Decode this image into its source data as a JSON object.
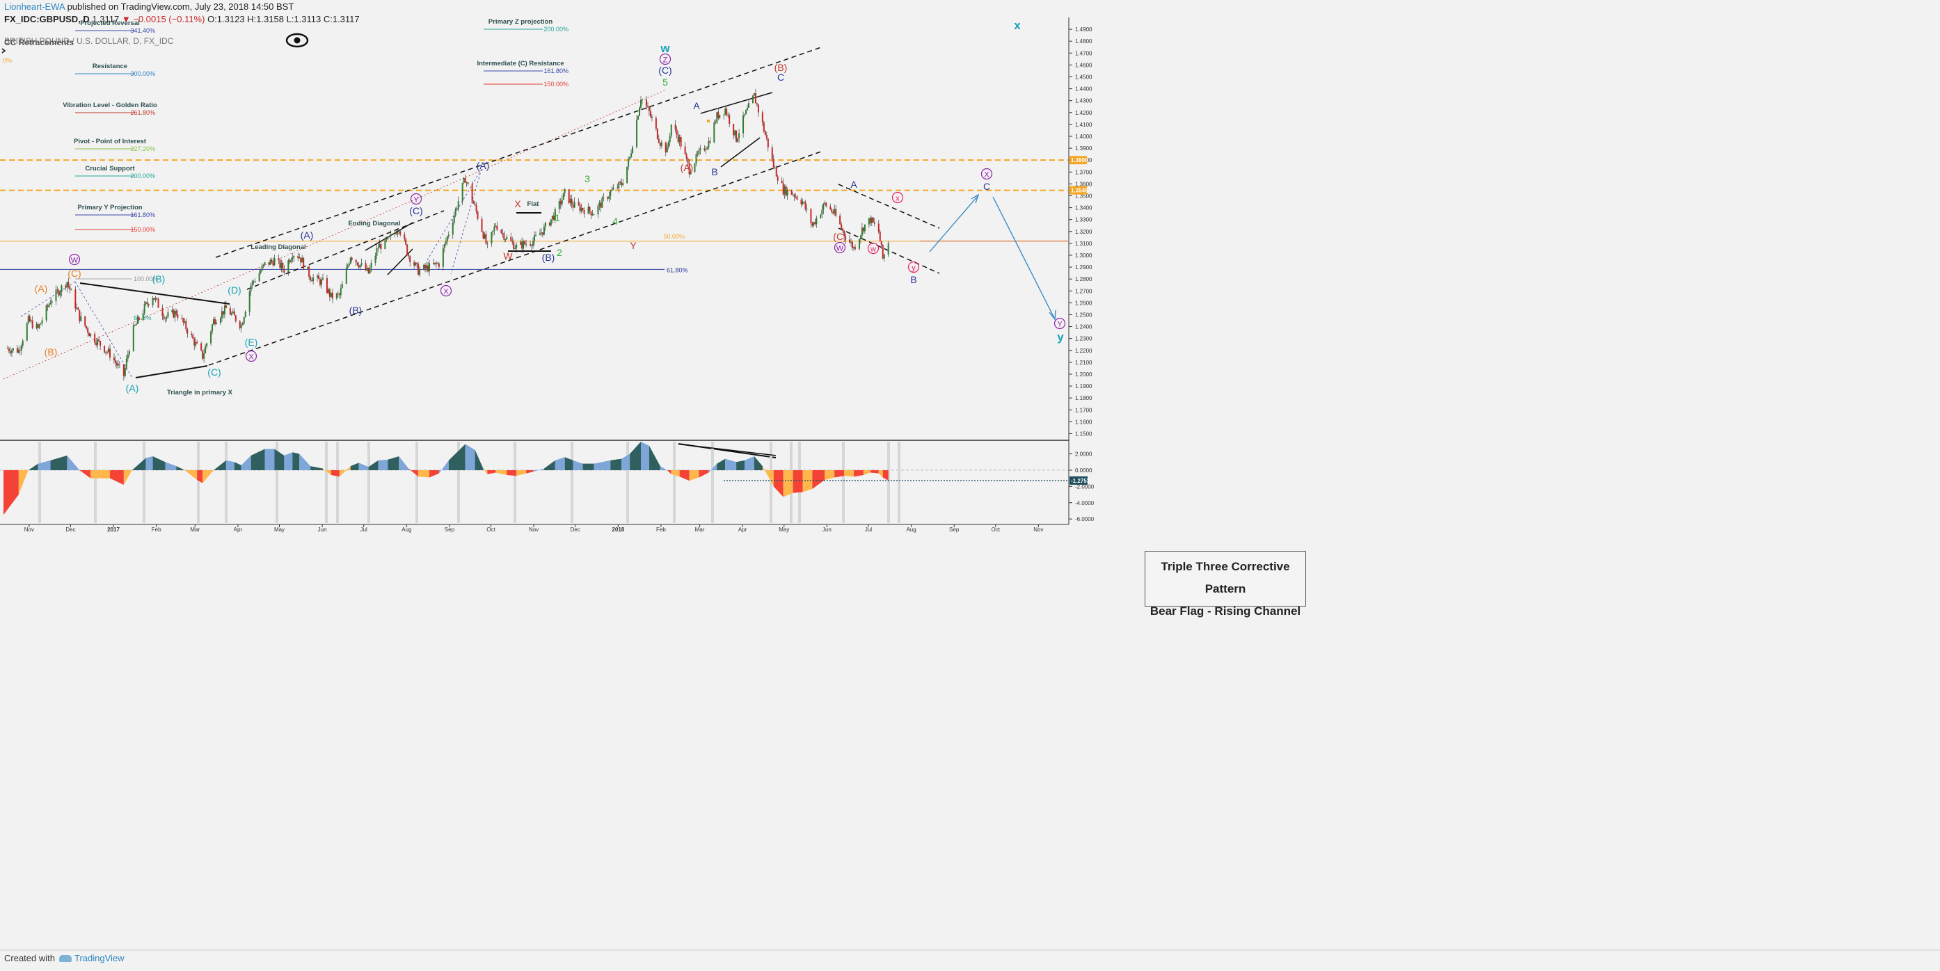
{
  "header": {
    "author": "Lionheart-EWA",
    "published": "published on TradingView.com, July 23, 2018 14:50 BST",
    "symbol": "FX_IDC:GBPUSD, D",
    "last": "1.3117",
    "change": "▼ −0.0015 (−0.11%)",
    "open": "O:1.3123",
    "high": "H:1.3158",
    "low": "L:1.3113",
    "close": "C:1.3117",
    "legend_main": "BRITISH POUND / U.S. DOLLAR, D, FX_IDC",
    "legend_overlay": "CC Retracements"
  },
  "footer": {
    "created_with": "Created with",
    "brand": "TradingView"
  },
  "note": {
    "line1": "Triple Three Corrective Pattern",
    "line2": "Bear Flag - Rising Channel"
  },
  "colors": {
    "up": "#2e7d32",
    "down": "#c62828",
    "orange": "#f5a623",
    "blue": "#2e86c1",
    "purple": "#8e24aa",
    "teal": "#17a2b8",
    "green": "#2eae2e",
    "red": "#c0392b",
    "navy": "#283593",
    "osc_pos_dark": "#2f5f5f",
    "osc_pos_light": "#7ea6d9",
    "osc_neg_red": "#f44336",
    "osc_neg_orange": "#ffb74d"
  },
  "chart_data": {
    "type": "candlestick",
    "symbol": "GBPUSD",
    "timeframe": "D",
    "x_ticks": [
      "Nov",
      "Dec",
      "2017",
      "Feb",
      "Mar",
      "Apr",
      "May",
      "Jun",
      "Jul",
      "Aug",
      "Sep",
      "Oct",
      "Nov",
      "Dec",
      "2018",
      "Feb",
      "Mar",
      "Apr",
      "May",
      "Jun",
      "Jul",
      "Aug",
      "Sep",
      "Oct",
      "Nov"
    ],
    "x_range": [
      "2016-10-21",
      "2018-11-30"
    ],
    "price_range": [
      1.145,
      1.5
    ],
    "price_ticks": [
      "1.4900",
      "1.4800",
      "1.4700",
      "1.4600",
      "1.4500",
      "1.4400",
      "1.4300",
      "1.4200",
      "1.4100",
      "1.4000",
      "1.3900",
      "1.3800",
      "1.3700",
      "1.3600",
      "1.3500",
      "1.3400",
      "1.3300",
      "1.3200",
      "1.3100",
      "1.3000",
      "1.2900",
      "1.2800",
      "1.2700",
      "1.2600",
      "1.2500",
      "1.2400",
      "1.2300",
      "1.2200",
      "1.2100",
      "1.2000",
      "1.1900",
      "1.1800",
      "1.1700",
      "1.1600",
      "1.1500"
    ],
    "price_path": [
      [
        "2016-10-21",
        1.222
      ],
      [
        "2016-11-01",
        1.22
      ],
      [
        "2016-11-08",
        1.245
      ],
      [
        "2016-11-15",
        1.238
      ],
      [
        "2016-11-24",
        1.262
      ],
      [
        "2016-12-06",
        1.278
      ],
      [
        "2016-12-15",
        1.248
      ],
      [
        "2016-12-23",
        1.233
      ],
      [
        "2017-01-06",
        1.217
      ],
      [
        "2017-01-16",
        1.199
      ],
      [
        "2017-01-22",
        1.235
      ],
      [
        "2017-02-01",
        1.258
      ],
      [
        "2017-02-06",
        1.266
      ],
      [
        "2017-02-15",
        1.248
      ],
      [
        "2017-02-23",
        1.252
      ],
      [
        "2017-03-01",
        1.241
      ],
      [
        "2017-03-10",
        1.223
      ],
      [
        "2017-03-14",
        1.215
      ],
      [
        "2017-03-22",
        1.245
      ],
      [
        "2017-03-31",
        1.255
      ],
      [
        "2017-04-06",
        1.248
      ],
      [
        "2017-04-11",
        1.241
      ],
      [
        "2017-04-18",
        1.275
      ],
      [
        "2017-04-28",
        1.292
      ],
      [
        "2017-05-05",
        1.296
      ],
      [
        "2017-05-12",
        1.288
      ],
      [
        "2017-05-18",
        1.302
      ],
      [
        "2017-05-23",
        1.299
      ],
      [
        "2017-05-31",
        1.282
      ],
      [
        "2017-06-09",
        1.277
      ],
      [
        "2017-06-15",
        1.265
      ],
      [
        "2017-06-21",
        1.266
      ],
      [
        "2017-06-29",
        1.3
      ],
      [
        "2017-07-05",
        1.293
      ],
      [
        "2017-07-12",
        1.285
      ],
      [
        "2017-07-19",
        1.307
      ],
      [
        "2017-07-26",
        1.312
      ],
      [
        "2017-08-03",
        1.324
      ],
      [
        "2017-08-10",
        1.3
      ],
      [
        "2017-08-17",
        1.287
      ],
      [
        "2017-08-25",
        1.29
      ],
      [
        "2017-09-01",
        1.293
      ],
      [
        "2017-09-08",
        1.319
      ],
      [
        "2017-09-20",
        1.365
      ],
      [
        "2017-09-27",
        1.34
      ],
      [
        "2017-10-03",
        1.318
      ],
      [
        "2017-10-06",
        1.306
      ],
      [
        "2017-10-12",
        1.326
      ],
      [
        "2017-10-20",
        1.314
      ],
      [
        "2017-10-27",
        1.307
      ],
      [
        "2017-11-03",
        1.31
      ],
      [
        "2017-11-08",
        1.312
      ],
      [
        "2017-11-16",
        1.322
      ],
      [
        "2017-11-24",
        1.335
      ],
      [
        "2017-12-01",
        1.352
      ],
      [
        "2017-12-07",
        1.342
      ],
      [
        "2017-12-14",
        1.339
      ],
      [
        "2017-12-22",
        1.336
      ],
      [
        "2018-01-03",
        1.353
      ],
      [
        "2018-01-11",
        1.36
      ],
      [
        "2018-01-17",
        1.382
      ],
      [
        "2018-01-25",
        1.433
      ],
      [
        "2018-01-31",
        1.42
      ],
      [
        "2018-02-08",
        1.395
      ],
      [
        "2018-02-13",
        1.388
      ],
      [
        "2018-02-16",
        1.41
      ],
      [
        "2018-02-22",
        1.397
      ],
      [
        "2018-03-01",
        1.372
      ],
      [
        "2018-03-08",
        1.385
      ],
      [
        "2018-03-15",
        1.395
      ],
      [
        "2018-03-21",
        1.417
      ],
      [
        "2018-03-27",
        1.423
      ],
      [
        "2018-04-04",
        1.398
      ],
      [
        "2018-04-10",
        1.417
      ],
      [
        "2018-04-17",
        1.434
      ],
      [
        "2018-04-23",
        1.41
      ],
      [
        "2018-05-01",
        1.375
      ],
      [
        "2018-05-08",
        1.355
      ],
      [
        "2018-05-15",
        1.352
      ],
      [
        "2018-05-22",
        1.345
      ],
      [
        "2018-05-29",
        1.325
      ],
      [
        "2018-06-07",
        1.343
      ],
      [
        "2018-06-14",
        1.335
      ],
      [
        "2018-06-21",
        1.318
      ],
      [
        "2018-06-28",
        1.306
      ],
      [
        "2018-07-05",
        1.324
      ],
      [
        "2018-07-10",
        1.33
      ],
      [
        "2018-07-16",
        1.32
      ],
      [
        "2018-07-19",
        1.297
      ],
      [
        "2018-07-23",
        1.312
      ]
    ],
    "horizontal_levels": [
      {
        "price": 1.38,
        "label": "1.3800",
        "style": "dashed",
        "color": "#f5a623"
      },
      {
        "price": 1.3546,
        "label": "1.3546",
        "style": "dashed",
        "color": "#f5a623"
      },
      {
        "price": 1.3118,
        "label": "",
        "style": "solid",
        "color": "#f5a623"
      },
      {
        "price": 1.2881,
        "label": "61.80%",
        "style": "solid",
        "color": "#2e3fa0"
      }
    ],
    "fib_levels_left": [
      {
        "name": "Projected Reversal",
        "pct": "341.40%",
        "color": "#3949ab"
      },
      {
        "name": "Resistance",
        "pct": "300.00%",
        "color": "#2e86c1"
      },
      {
        "name": "Vibration Level - Golden Ratio",
        "pct": "261.80%",
        "color": "#c0392b"
      },
      {
        "name": "Pivot - Point of Interest",
        "pct": "227.20%",
        "color": "#8bc34a"
      },
      {
        "name": "Crucial Support",
        "pct": "200.00%",
        "color": "#26a69a"
      },
      {
        "name": "Primary Y Projection",
        "pct": "161.80%",
        "color": "#3949ab"
      },
      {
        "name": "",
        "pct": "150.00%",
        "color": "#e53935"
      }
    ],
    "fib_levels_top": [
      {
        "name": "Primary Z projection",
        "pct": "200.00%",
        "color": "#26a69a"
      },
      {
        "name": "Intermediate (C) Resistance",
        "pct": "161.80%",
        "color": "#3949ab"
      },
      {
        "name": "",
        "pct": "150.00%",
        "color": "#e53935"
      }
    ],
    "misc_labels": [
      {
        "text": "50.00%",
        "color": "#f5a623"
      },
      {
        "text": "100.00%",
        "color": "#999999"
      },
      {
        "text": "0%",
        "color": "#f5a623"
      },
      {
        "text": "61.8%",
        "color": "#26a69a"
      }
    ],
    "annotations": [
      {
        "text": "Leading Diagonal",
        "color": "#2f4f4f"
      },
      {
        "text": "Ending Diagonal",
        "color": "#2f4f4f"
      },
      {
        "text": "Flat",
        "color": "#2f4f4f"
      },
      {
        "text": "Triangle in primary X",
        "color": "#2f4f4f"
      }
    ],
    "wave_labels": [
      {
        "text": "W",
        "circled": true,
        "color": "#8e24aa"
      },
      {
        "text": "(C)",
        "color": "#e67e22"
      },
      {
        "text": "(A)",
        "color": "#e67e22"
      },
      {
        "text": "(B)",
        "color": "#e67e22"
      },
      {
        "text": "(B)",
        "color": "#17a2b8"
      },
      {
        "text": "(A)",
        "color": "#17a2b8"
      },
      {
        "text": "(C)",
        "color": "#17a2b8"
      },
      {
        "text": "(D)",
        "color": "#17a2b8"
      },
      {
        "text": "(E)",
        "color": "#17a2b8"
      },
      {
        "text": "X",
        "circled": true,
        "color": "#8e24aa"
      },
      {
        "text": "(A)",
        "color": "#283593"
      },
      {
        "text": "(B)",
        "color": "#283593"
      },
      {
        "text": "Y",
        "circled": true,
        "color": "#8e24aa"
      },
      {
        "text": "(C)",
        "color": "#283593"
      },
      {
        "text": "X",
        "circled": true,
        "color": "#8e24aa"
      },
      {
        "text": "(A)",
        "color": "#283593"
      },
      {
        "text": "X",
        "color": "#c0392b"
      },
      {
        "text": "W",
        "color": "#c0392b"
      },
      {
        "text": "(B)",
        "color": "#283593"
      },
      {
        "text": "1",
        "color": "#2eae2e"
      },
      {
        "text": "2",
        "color": "#2eae2e"
      },
      {
        "text": "3",
        "color": "#2eae2e"
      },
      {
        "text": "4",
        "color": "#2eae2e"
      },
      {
        "text": "Y",
        "color": "#c0392b"
      },
      {
        "text": "5",
        "color": "#2eae2e"
      },
      {
        "text": "(C)",
        "color": "#283593"
      },
      {
        "text": "Z",
        "circled": true,
        "color": "#8e24aa"
      },
      {
        "text": "w",
        "color": "#17a2b8"
      },
      {
        "text": "(A)",
        "color": "#c0392b"
      },
      {
        "text": "A",
        "color": "#283593"
      },
      {
        "text": "B",
        "color": "#283593"
      },
      {
        "text": "(B)",
        "color": "#c0392b"
      },
      {
        "text": "C",
        "color": "#283593"
      },
      {
        "text": "(C)",
        "color": "#c0392b"
      },
      {
        "text": "W",
        "circled": true,
        "color": "#8e24aa"
      },
      {
        "text": "A",
        "color": "#283593"
      },
      {
        "text": "w",
        "circled": true,
        "color": "#e91e63"
      },
      {
        "text": "x",
        "circled": true,
        "color": "#e91e63"
      },
      {
        "text": "y",
        "circled": true,
        "color": "#e91e63"
      },
      {
        "text": "B",
        "color": "#283593"
      },
      {
        "text": "X",
        "circled": true,
        "color": "#8e24aa"
      },
      {
        "text": "C",
        "color": "#283593"
      },
      {
        "text": "Y",
        "circled": true,
        "color": "#8e24aa"
      },
      {
        "text": "x",
        "color": "#17a2b8"
      },
      {
        "text": "y",
        "color": "#17a2b8"
      }
    ],
    "oscillator": {
      "ticks": [
        "2.0000",
        "0.0000",
        "-2.0000",
        "-4.0000",
        "-6.0000"
      ],
      "range": [
        -6.5,
        3.5
      ],
      "current": "-1.2753",
      "path": [
        [
          "2016-10-21",
          -5.5
        ],
        [
          "2016-11-01",
          -3.0
        ],
        [
          "2016-11-08",
          0.0
        ],
        [
          "2016-11-15",
          0.8
        ],
        [
          "2016-11-24",
          1.2
        ],
        [
          "2016-12-06",
          1.8
        ],
        [
          "2016-12-15",
          0.0
        ],
        [
          "2016-12-23",
          -1.0
        ],
        [
          "2017-01-06",
          -1.0
        ],
        [
          "2017-01-16",
          -1.8
        ],
        [
          "2017-01-22",
          0.0
        ],
        [
          "2017-02-01",
          1.5
        ],
        [
          "2017-02-06",
          1.7
        ],
        [
          "2017-02-15",
          1.0
        ],
        [
          "2017-02-23",
          0.5
        ],
        [
          "2017-03-01",
          0.0
        ],
        [
          "2017-03-10",
          -1.2
        ],
        [
          "2017-03-14",
          -1.6
        ],
        [
          "2017-03-22",
          0.0
        ],
        [
          "2017-03-31",
          1.2
        ],
        [
          "2017-04-06",
          1.0
        ],
        [
          "2017-04-11",
          0.6
        ],
        [
          "2017-04-18",
          1.8
        ],
        [
          "2017-04-28",
          2.6
        ],
        [
          "2017-05-05",
          2.6
        ],
        [
          "2017-05-12",
          1.8
        ],
        [
          "2017-05-18",
          2.2
        ],
        [
          "2017-05-23",
          2.0
        ],
        [
          "2017-05-31",
          0.5
        ],
        [
          "2017-06-09",
          0.2
        ],
        [
          "2017-06-15",
          -0.6
        ],
        [
          "2017-06-21",
          -0.8
        ],
        [
          "2017-06-29",
          0.5
        ],
        [
          "2017-07-05",
          0.9
        ],
        [
          "2017-07-12",
          0.4
        ],
        [
          "2017-07-19",
          1.2
        ],
        [
          "2017-07-26",
          1.3
        ],
        [
          "2017-08-03",
          1.7
        ],
        [
          "2017-08-10",
          0.2
        ],
        [
          "2017-08-17",
          -0.8
        ],
        [
          "2017-08-25",
          -0.9
        ],
        [
          "2017-09-01",
          -0.4
        ],
        [
          "2017-09-08",
          1.2
        ],
        [
          "2017-09-20",
          3.2
        ],
        [
          "2017-09-27",
          2.5
        ],
        [
          "2017-10-03",
          0.2
        ],
        [
          "2017-10-06",
          -0.5
        ],
        [
          "2017-10-12",
          -0.3
        ],
        [
          "2017-10-20",
          -0.6
        ],
        [
          "2017-10-27",
          -0.7
        ],
        [
          "2017-11-03",
          -0.4
        ],
        [
          "2017-11-08",
          -0.2
        ],
        [
          "2017-11-16",
          0.2
        ],
        [
          "2017-11-24",
          1.2
        ],
        [
          "2017-12-01",
          1.6
        ],
        [
          "2017-12-07",
          1.2
        ],
        [
          "2017-12-14",
          0.8
        ],
        [
          "2017-12-22",
          0.8
        ],
        [
          "2018-01-03",
          1.2
        ],
        [
          "2018-01-11",
          1.4
        ],
        [
          "2018-01-17",
          2.0
        ],
        [
          "2018-01-25",
          3.5
        ],
        [
          "2018-01-31",
          3.0
        ],
        [
          "2018-02-08",
          0.5
        ],
        [
          "2018-02-13",
          0.0
        ],
        [
          "2018-02-16",
          -0.5
        ],
        [
          "2018-02-22",
          -0.8
        ],
        [
          "2018-03-01",
          -1.3
        ],
        [
          "2018-03-08",
          -0.9
        ],
        [
          "2018-03-15",
          -0.3
        ],
        [
          "2018-03-21",
          0.8
        ],
        [
          "2018-03-27",
          1.4
        ],
        [
          "2018-04-04",
          1.0
        ],
        [
          "2018-04-10",
          1.2
        ],
        [
          "2018-04-17",
          1.7
        ],
        [
          "2018-04-23",
          0.5
        ],
        [
          "2018-05-01",
          -2.0
        ],
        [
          "2018-05-08",
          -3.3
        ],
        [
          "2018-05-15",
          -2.8
        ],
        [
          "2018-05-22",
          -2.7
        ],
        [
          "2018-05-29",
          -2.3
        ],
        [
          "2018-06-07",
          -1.2
        ],
        [
          "2018-06-14",
          -0.9
        ],
        [
          "2018-06-21",
          -0.7
        ],
        [
          "2018-06-28",
          -0.8
        ],
        [
          "2018-07-05",
          -0.6
        ],
        [
          "2018-07-10",
          -0.3
        ],
        [
          "2018-07-16",
          -0.4
        ],
        [
          "2018-07-19",
          -0.9
        ],
        [
          "2018-07-23",
          -1.2753
        ]
      ]
    }
  }
}
